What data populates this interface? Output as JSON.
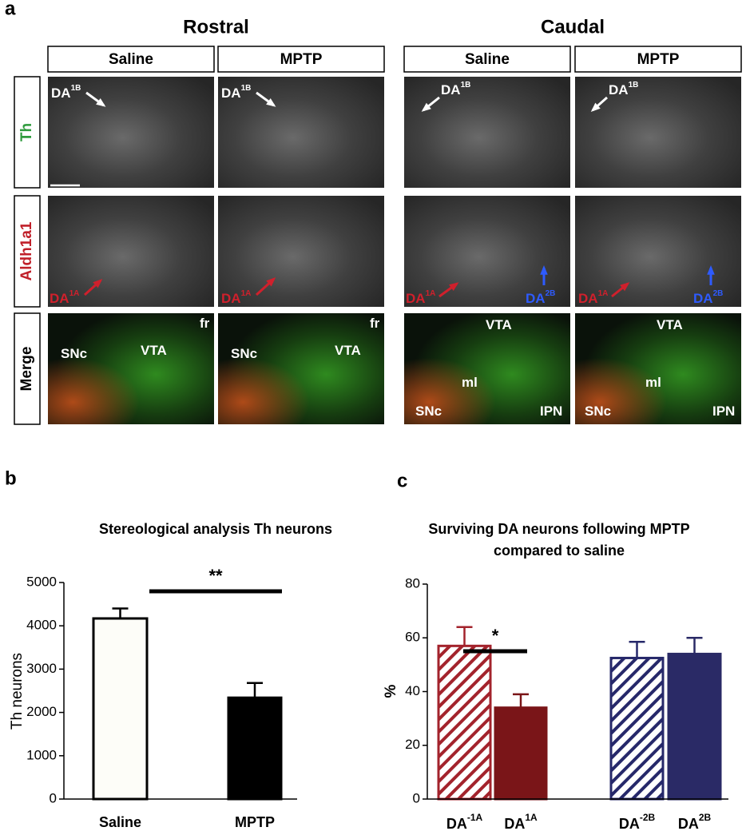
{
  "panel_a": {
    "panel_label": "a",
    "column_groups": [
      {
        "title": "Rostral",
        "columns": [
          "Saline",
          "MPTP"
        ]
      },
      {
        "title": "Caudal",
        "columns": [
          "Saline",
          "MPTP"
        ]
      }
    ],
    "rows": [
      {
        "text": "Th",
        "color": "#2e9a3c"
      },
      {
        "text": "Aldh1a1",
        "color": "#c0202a"
      },
      {
        "text": "Merge",
        "color": "#000000"
      }
    ],
    "images": [
      {
        "annotations": [
          {
            "text": "DA",
            "sup": "1B",
            "color": "#ffffff"
          }
        ]
      },
      {
        "annotations": [
          {
            "text": "DA",
            "sup": "1B",
            "color": "#ffffff"
          }
        ]
      },
      {
        "annotations": [
          {
            "text": "DA",
            "sup": "1B",
            "color": "#ffffff"
          }
        ]
      },
      {
        "annotations": [
          {
            "text": "DA",
            "sup": "1B",
            "color": "#ffffff"
          }
        ]
      },
      {
        "annotations": [
          {
            "text": "DA",
            "sup": "1A",
            "color": "#d0202c"
          }
        ]
      },
      {
        "annotations": [
          {
            "text": "DA",
            "sup": "1A",
            "color": "#d0202c"
          }
        ]
      },
      {
        "annotations": [
          {
            "text": "DA",
            "sup": "1A",
            "color": "#d0202c"
          },
          {
            "text": "DA",
            "sup": "2B",
            "color": "#2e5bff"
          }
        ]
      },
      {
        "annotations": [
          {
            "text": "DA",
            "sup": "1A",
            "color": "#d0202c"
          },
          {
            "text": "DA",
            "sup": "2B",
            "color": "#2e5bff"
          }
        ]
      },
      {
        "annotations": [
          {
            "text": "SNc",
            "color": "#ffffff"
          },
          {
            "text": "VTA",
            "color": "#ffffff"
          },
          {
            "text": "fr",
            "color": "#ffffff"
          }
        ]
      },
      {
        "annotations": [
          {
            "text": "SNc",
            "color": "#ffffff"
          },
          {
            "text": "VTA",
            "color": "#ffffff"
          },
          {
            "text": "fr",
            "color": "#ffffff"
          }
        ]
      },
      {
        "annotations": [
          {
            "text": "VTA",
            "color": "#ffffff"
          },
          {
            "text": "ml",
            "color": "#ffffff"
          },
          {
            "text": "SNc",
            "color": "#ffffff"
          },
          {
            "text": "IPN",
            "color": "#ffffff"
          }
        ]
      },
      {
        "annotations": [
          {
            "text": "VTA",
            "color": "#ffffff"
          },
          {
            "text": "ml",
            "color": "#ffffff"
          },
          {
            "text": "SNc",
            "color": "#ffffff"
          },
          {
            "text": "IPN",
            "color": "#ffffff"
          }
        ]
      }
    ]
  },
  "chart_data": [
    {
      "type": "bar",
      "panel_label": "b",
      "title": [
        "Stereological analysis Th neurons"
      ],
      "y_label": "Th neurons",
      "categories": [
        "Saline",
        "MPTP"
      ],
      "values": [
        4170,
        2340
      ],
      "errors": [
        230,
        340
      ],
      "colors": [
        "#fdfdf8",
        "#000000"
      ],
      "hatched": [
        false,
        false
      ],
      "significance": "**",
      "ylim": [
        0,
        5000
      ],
      "yticks": [
        0,
        1000,
        2000,
        3000,
        4000,
        5000
      ]
    },
    {
      "type": "bar",
      "panel_label": "c",
      "title": [
        "Surviving DA neurons following MPTP",
        "compared to saline"
      ],
      "y_label": "%",
      "categories": [
        {
          "text": "DA",
          "sup": "-1A"
        },
        {
          "text": "DA",
          "sup": "1A"
        },
        {
          "text": "DA",
          "sup": "-2B"
        },
        {
          "text": "DA",
          "sup": "2B"
        }
      ],
      "values": [
        57,
        34,
        52.5,
        54
      ],
      "errors": [
        7,
        5,
        6,
        6
      ],
      "colors": [
        "#a3232c",
        "#7a1518",
        "#26286a",
        "#2a2a66"
      ],
      "hatched": [
        true,
        false,
        true,
        false
      ],
      "significance": "*",
      "ylim": [
        0,
        80
      ],
      "yticks": [
        0,
        20,
        40,
        60,
        80
      ]
    }
  ]
}
